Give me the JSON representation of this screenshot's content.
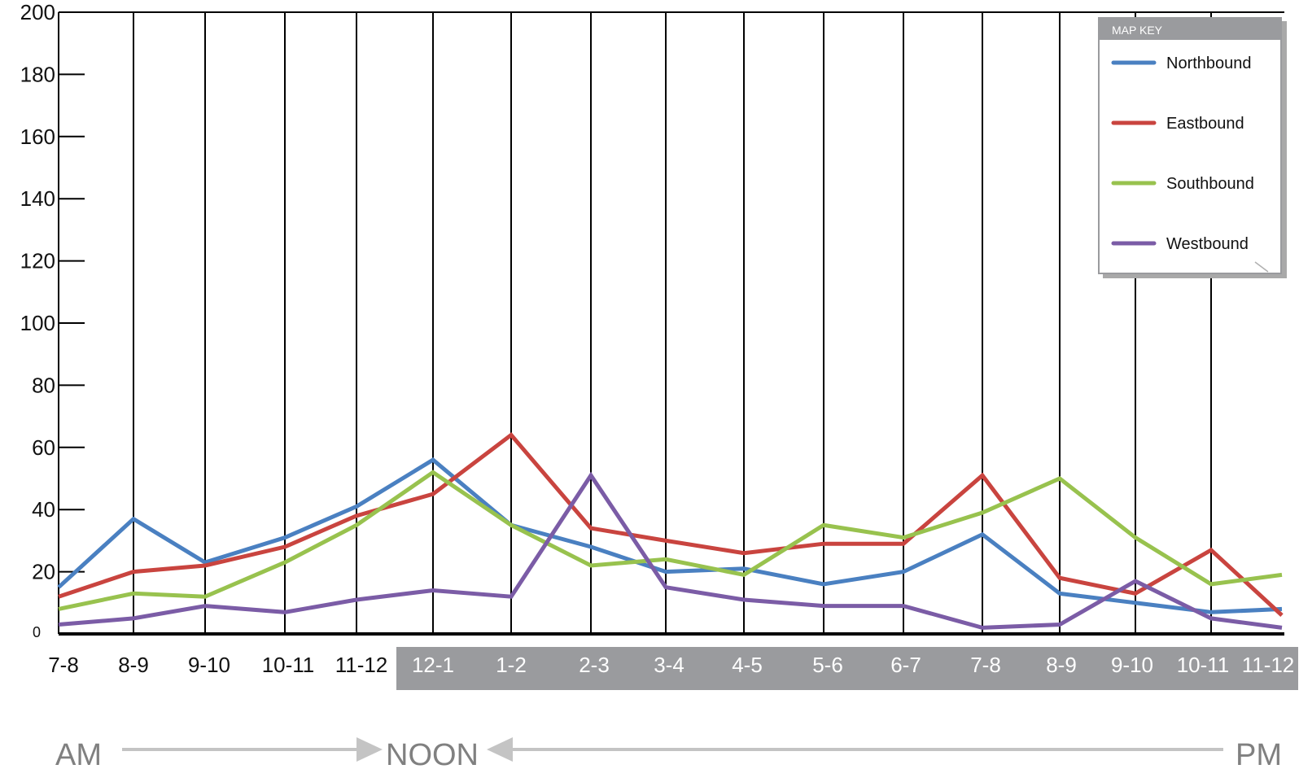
{
  "chart_data": {
    "type": "line",
    "title": "",
    "xlabel": "",
    "ylabel": "",
    "ylim": [
      0,
      200
    ],
    "y_ticks": [
      "200",
      "180",
      "160",
      "140",
      "120",
      "100",
      "80",
      "60",
      "40",
      "20",
      "0"
    ],
    "categories": [
      "7-8",
      "8-9",
      "9-10",
      "10-11",
      "11-12",
      "12-1",
      "1-2",
      "2-3",
      "3-4",
      "4-5",
      "5-6",
      "6-7",
      "7-8",
      "8-9",
      "9-10",
      "10-11",
      "11-12"
    ],
    "pm_band_start_index": 5,
    "grid": "vertical",
    "legend": {
      "title": "MAP KEY",
      "placement": "top-right"
    },
    "series": [
      {
        "name": "Northbound",
        "color": "#4a80c1",
        "values": [
          15,
          37,
          23,
          31,
          41,
          56,
          35,
          28,
          20,
          21,
          16,
          20,
          32,
          13,
          10,
          7,
          8
        ]
      },
      {
        "name": "Eastbound",
        "color": "#c9443f",
        "values": [
          12,
          20,
          22,
          28,
          38,
          45,
          64,
          34,
          30,
          26,
          29,
          29,
          51,
          18,
          13,
          27,
          6
        ]
      },
      {
        "name": "Southbound",
        "color": "#98c24e",
        "values": [
          8,
          13,
          12,
          23,
          35,
          52,
          35,
          22,
          24,
          19,
          35,
          31,
          39,
          50,
          31,
          16,
          19
        ]
      },
      {
        "name": "Westbound",
        "color": "#7b5ca6",
        "values": [
          3,
          5,
          9,
          7,
          11,
          14,
          12,
          51,
          15,
          11,
          9,
          9,
          2,
          3,
          17,
          5,
          2
        ]
      }
    ],
    "period_labels": {
      "am": "AM",
      "noon": "NOON",
      "pm": "PM"
    }
  },
  "colors": {
    "band": "#9a9b9e",
    "legend_header": "#9a9b9e",
    "arrow": "#c4c4c4",
    "period_text": "#808080"
  }
}
